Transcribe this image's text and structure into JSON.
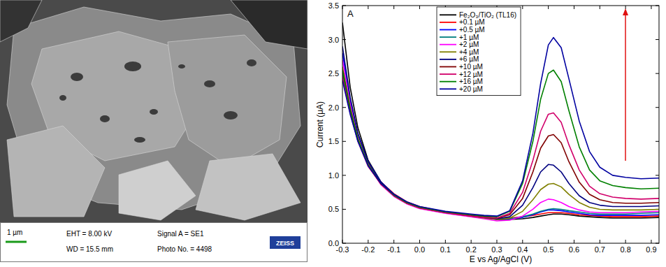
{
  "micrograph": {
    "scale_bar": "1 µm",
    "eht": "EHT = 8.00 kV",
    "wd": "WD = 15.5 mm",
    "signal": "Signal A = SE1",
    "photo_no": "Photo No. = 4498",
    "brand": "ZEISS"
  },
  "chart_data": {
    "type": "line",
    "panel_label": "A",
    "x_label": "E vs Ag/AgCl (V)",
    "y_label": "Current (μA)",
    "xlim": [
      -0.3,
      0.93
    ],
    "ylim": [
      0,
      3.5
    ],
    "xticks": [
      -0.3,
      -0.2,
      -0.1,
      {
        "value": 0,
        "label": "0.0"
      },
      0.1,
      0.2,
      0.3,
      0.4,
      0.5,
      0.6,
      0.7,
      0.8,
      0.9
    ],
    "yticks": [
      {
        "value": 0,
        "label": "0.0"
      },
      0.5,
      {
        "value": 1,
        "label": "1.0"
      },
      1.5,
      {
        "value": 2,
        "label": "2.0"
      },
      2.5,
      {
        "value": 3,
        "label": "3.0"
      },
      3.5
    ],
    "legend": "upper left",
    "grid": false,
    "x": [
      -0.3,
      -0.27,
      -0.24,
      -0.2,
      -0.15,
      -0.1,
      -0.05,
      0,
      0.1,
      0.2,
      0.25,
      0.3,
      0.35,
      0.4,
      0.44,
      0.47,
      0.5,
      0.52,
      0.55,
      0.58,
      0.62,
      0.66,
      0.7,
      0.75,
      0.8,
      0.86,
      0.93
    ],
    "series": [
      {
        "name": "Fe₂O₃/TiO₂ (TL16)",
        "color": "#000000",
        "values": [
          3.25,
          2.3,
          1.7,
          1.22,
          0.9,
          0.72,
          0.6,
          0.53,
          0.46,
          0.41,
          0.38,
          0.35,
          0.35,
          0.36,
          0.38,
          0.4,
          0.42,
          0.43,
          0.43,
          0.42,
          0.4,
          0.39,
          0.38,
          0.37,
          0.37,
          0.37,
          0.38
        ]
      },
      {
        "name": "+0.1 µM",
        "color": "#ff0000",
        "values": [
          2.5,
          1.95,
          1.55,
          1.18,
          0.9,
          0.73,
          0.61,
          0.54,
          0.46,
          0.41,
          0.39,
          0.37,
          0.37,
          0.39,
          0.41,
          0.43,
          0.45,
          0.45,
          0.45,
          0.44,
          0.42,
          0.41,
          0.4,
          0.39,
          0.39,
          0.39,
          0.4
        ]
      },
      {
        "name": "+0.5 µM",
        "color": "#0000ff",
        "values": [
          2.8,
          2.1,
          1.6,
          1.2,
          0.9,
          0.72,
          0.6,
          0.53,
          0.46,
          0.41,
          0.38,
          0.36,
          0.36,
          0.38,
          0.42,
          0.46,
          0.49,
          0.49,
          0.48,
          0.46,
          0.44,
          0.42,
          0.41,
          0.41,
          0.41,
          0.41,
          0.42
        ]
      },
      {
        "name": "+1 µM",
        "color": "#008080",
        "values": [
          2.5,
          1.95,
          1.52,
          1.15,
          0.88,
          0.71,
          0.6,
          0.53,
          0.46,
          0.41,
          0.38,
          0.36,
          0.36,
          0.39,
          0.43,
          0.47,
          0.5,
          0.51,
          0.5,
          0.48,
          0.46,
          0.44,
          0.43,
          0.43,
          0.43,
          0.44,
          0.45
        ]
      },
      {
        "name": "+2 µM",
        "color": "#ff00ff",
        "values": [
          2.7,
          2.05,
          1.56,
          1.15,
          0.86,
          0.69,
          0.58,
          0.51,
          0.44,
          0.39,
          0.36,
          0.33,
          0.34,
          0.4,
          0.5,
          0.6,
          0.65,
          0.64,
          0.6,
          0.54,
          0.49,
          0.46,
          0.45,
          0.45,
          0.45,
          0.46,
          0.47
        ]
      },
      {
        "name": "+4 µM",
        "color": "#808000",
        "values": [
          2.6,
          2.0,
          1.55,
          1.16,
          0.88,
          0.7,
          0.59,
          0.52,
          0.45,
          0.4,
          0.37,
          0.35,
          0.37,
          0.47,
          0.64,
          0.79,
          0.87,
          0.88,
          0.83,
          0.72,
          0.6,
          0.53,
          0.5,
          0.49,
          0.49,
          0.49,
          0.5
        ]
      },
      {
        "name": "+6 µM",
        "color": "#000080",
        "values": [
          2.9,
          2.15,
          1.62,
          1.2,
          0.9,
          0.72,
          0.6,
          0.53,
          0.46,
          0.41,
          0.38,
          0.36,
          0.39,
          0.56,
          0.82,
          1.05,
          1.16,
          1.15,
          1.05,
          0.88,
          0.7,
          0.6,
          0.56,
          0.54,
          0.54,
          0.54,
          0.55
        ]
      },
      {
        "name": "+10 µM",
        "color": "#800000",
        "values": [
          2.55,
          1.98,
          1.52,
          1.14,
          0.87,
          0.7,
          0.59,
          0.52,
          0.45,
          0.4,
          0.38,
          0.37,
          0.42,
          0.66,
          1.05,
          1.4,
          1.58,
          1.6,
          1.48,
          1.2,
          0.9,
          0.72,
          0.64,
          0.6,
          0.59,
          0.59,
          0.6
        ]
      },
      {
        "name": "+12 µM",
        "color": "#d1006b",
        "values": [
          2.45,
          1.92,
          1.5,
          1.13,
          0.87,
          0.7,
          0.59,
          0.52,
          0.45,
          0.4,
          0.38,
          0.37,
          0.44,
          0.75,
          1.22,
          1.65,
          1.9,
          1.92,
          1.78,
          1.45,
          1.08,
          0.84,
          0.73,
          0.68,
          0.66,
          0.65,
          0.66
        ]
      },
      {
        "name": "+16 µM",
        "color": "#008000",
        "values": [
          2.55,
          1.98,
          1.53,
          1.15,
          0.88,
          0.71,
          0.6,
          0.53,
          0.46,
          0.42,
          0.4,
          0.39,
          0.47,
          0.88,
          1.5,
          2.12,
          2.5,
          2.55,
          2.38,
          1.95,
          1.42,
          1.08,
          0.92,
          0.85,
          0.82,
          0.8,
          0.81
        ]
      },
      {
        "name": "+20 µM",
        "color": "#0000a0",
        "values": [
          2.4,
          1.9,
          1.5,
          1.14,
          0.88,
          0.72,
          0.61,
          0.54,
          0.47,
          0.43,
          0.41,
          0.4,
          0.48,
          0.92,
          1.62,
          2.35,
          2.92,
          3.03,
          2.88,
          2.42,
          1.8,
          1.35,
          1.12,
          1.0,
          0.97,
          0.95,
          0.96
        ]
      }
    ]
  }
}
